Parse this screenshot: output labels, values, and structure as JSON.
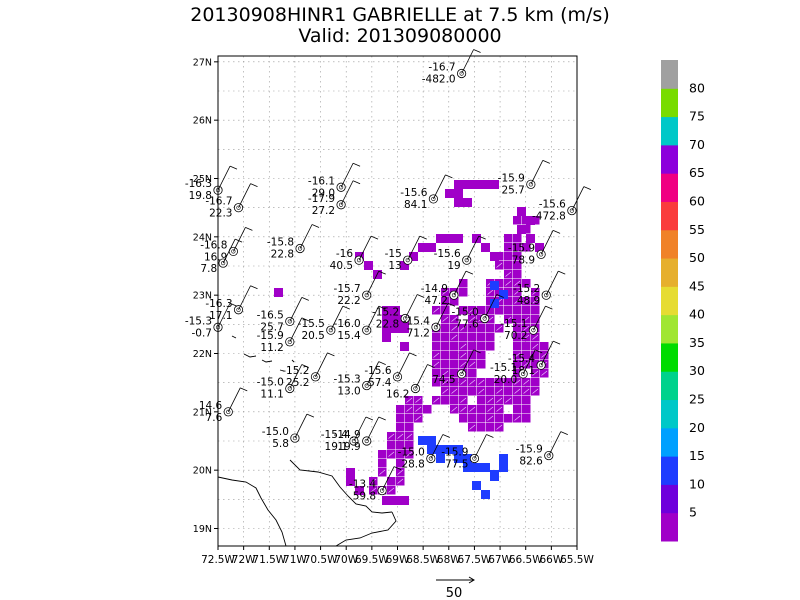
{
  "title_line1": "20130908HINR1 GABRIELLE at 7.5 km (m/s)",
  "title_line2": "Valid: 201309080000",
  "axes": {
    "lon_labels": [
      "72.5W",
      "72W",
      "71.5W",
      "71W",
      "70.5W",
      "70W",
      "69.5W",
      "69W",
      "68.5W",
      "68W",
      "67.5W",
      "67W",
      "66.5W",
      "66W",
      "65.5W"
    ],
    "lat_labels": [
      "19N",
      "20N",
      "21N",
      "22N",
      "23N",
      "24N",
      "25N",
      "26N",
      "27N"
    ],
    "lon_range": [
      -72.5,
      -65.5
    ],
    "lat_range": [
      18.7,
      27.1
    ]
  },
  "colorbar": {
    "labels": [
      "5",
      "10",
      "15",
      "20",
      "25",
      "30",
      "35",
      "40",
      "45",
      "50",
      "55",
      "60",
      "65",
      "70",
      "75",
      "80"
    ],
    "colors": [
      "#a000c8",
      "#6e00dc",
      "#1e3cff",
      "#00a0ff",
      "#00c8c8",
      "#00d28c",
      "#00dc00",
      "#a0e632",
      "#e6dc32",
      "#e6af2d",
      "#f08228",
      "#fa3c3c",
      "#f00082",
      "#8c00dc",
      "#00c8c8",
      "#78dc00",
      "#a0a0a0"
    ]
  },
  "reference_vector": {
    "label": "50"
  },
  "observations": [
    {
      "lat": 26.8,
      "lon": -67.75,
      "t": "-16.7",
      "v": "-482.0"
    },
    {
      "lat": 24.8,
      "lon": -72.5,
      "t": "-16.3",
      "v": "19.8"
    },
    {
      "lat": 24.5,
      "lon": -72.1,
      "t": "-16.7",
      "v": "22.3"
    },
    {
      "lat": 24.85,
      "lon": -70.1,
      "t": "-16.1",
      "v": "29.0"
    },
    {
      "lat": 24.55,
      "lon": -70.1,
      "t": "-17.9",
      "v": "27.2"
    },
    {
      "lat": 24.65,
      "lon": -68.3,
      "t": "-15.6",
      "v": "84.1"
    },
    {
      "lat": 24.9,
      "lon": -66.4,
      "t": "-15.9",
      "v": "25.7"
    },
    {
      "lat": 24.45,
      "lon": -65.6,
      "t": "-15.6",
      "v": "-472.8"
    },
    {
      "lat": 23.75,
      "lon": -72.2,
      "t": "-16.8",
      "v": "16.9"
    },
    {
      "lat": 23.55,
      "lon": -72.4,
      "t": "",
      "v": "7.8"
    },
    {
      "lat": 23.8,
      "lon": -70.9,
      "t": "-15.8",
      "v": "22.8"
    },
    {
      "lat": 23.6,
      "lon": -69.75,
      "t": "-16",
      "v": "40.5"
    },
    {
      "lat": 23.6,
      "lon": -68.8,
      "t": "-15",
      "v": "13"
    },
    {
      "lat": 23.6,
      "lon": -67.65,
      "t": "-15.6",
      "v": "19"
    },
    {
      "lat": 23.7,
      "lon": -66.2,
      "t": "-15.9",
      "v": "78.9"
    },
    {
      "lat": 23.0,
      "lon": -69.6,
      "t": "-15.7",
      "v": "22.2"
    },
    {
      "lat": 23.0,
      "lon": -67.9,
      "t": "-14.9",
      "v": "47.2"
    },
    {
      "lat": 23.0,
      "lon": -66.1,
      "t": "-15.2",
      "v": "48.9"
    },
    {
      "lat": 22.75,
      "lon": -72.1,
      "t": "-16.3",
      "v": "17.1"
    },
    {
      "lat": 22.55,
      "lon": -71.1,
      "t": "-16.5",
      "v": "25.7"
    },
    {
      "lat": 22.45,
      "lon": -72.5,
      "t": "-15.3",
      "v": "-0.7"
    },
    {
      "lat": 22.4,
      "lon": -70.3,
      "t": "-15.5",
      "v": "20.5"
    },
    {
      "lat": 22.4,
      "lon": -69.6,
      "t": "-16.0",
      "v": "15.4"
    },
    {
      "lat": 22.6,
      "lon": -68.85,
      "t": "-15.2",
      "v": "22.8"
    },
    {
      "lat": 22.45,
      "lon": -68.25,
      "t": "-15.4",
      "v": "71.2"
    },
    {
      "lat": 22.6,
      "lon": -67.3,
      "t": "-15.0",
      "v": "77.6"
    },
    {
      "lat": 22.4,
      "lon": -66.35,
      "t": "-15.1",
      "v": "70.2"
    },
    {
      "lat": 22.2,
      "lon": -71.1,
      "t": "-15.9",
      "v": "11.2"
    },
    {
      "lat": 21.8,
      "lon": -66.2,
      "t": "-15.4",
      "v": "18.1"
    },
    {
      "lat": 21.6,
      "lon": -70.6,
      "t": "-15.2",
      "v": "25.2"
    },
    {
      "lat": 21.4,
      "lon": -71.1,
      "t": "-15.0",
      "v": "11.1"
    },
    {
      "lat": 21.45,
      "lon": -69.6,
      "t": "-15.3",
      "v": "13.0"
    },
    {
      "lat": 21.6,
      "lon": -69.0,
      "t": "-15.6",
      "v": "57.4"
    },
    {
      "lat": 21.4,
      "lon": -68.65,
      "t": "",
      "v": "16.2"
    },
    {
      "lat": 21.65,
      "lon": -67.75,
      "t": "",
      "v": "74.5"
    },
    {
      "lat": 21.65,
      "lon": -66.55,
      "t": "-15.1",
      "v": "20.0"
    },
    {
      "lat": 21.0,
      "lon": -72.3,
      "t": "14.6",
      "v": "7.6"
    },
    {
      "lat": 20.55,
      "lon": -71.0,
      "t": "-15.0",
      "v": "5.8"
    },
    {
      "lat": 20.5,
      "lon": -69.85,
      "t": "-15.4",
      "v": "19.1"
    },
    {
      "lat": 20.5,
      "lon": -69.6,
      "t": "-14.9",
      "v": "19.9"
    },
    {
      "lat": 20.2,
      "lon": -68.35,
      "t": "-15.0",
      "v": "28.8"
    },
    {
      "lat": 20.2,
      "lon": -67.5,
      "t": "-15.9",
      "v": "77.5"
    },
    {
      "lat": 20.25,
      "lon": -66.05,
      "t": "-15.9",
      "v": "82.6"
    },
    {
      "lat": 19.65,
      "lon": -69.3,
      "t": "-13.4",
      "v": "59.8"
    }
  ]
}
